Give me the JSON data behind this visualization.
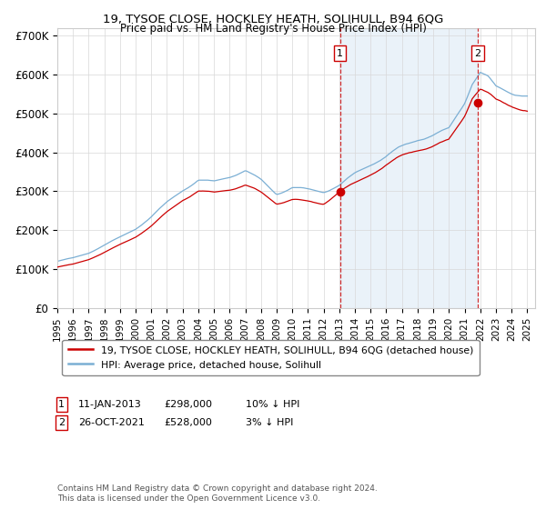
{
  "title": "19, TYSOE CLOSE, HOCKLEY HEATH, SOLIHULL, B94 6QG",
  "subtitle": "Price paid vs. HM Land Registry's House Price Index (HPI)",
  "ylabel_ticks": [
    "£0",
    "£100K",
    "£200K",
    "£300K",
    "£400K",
    "£500K",
    "£600K",
    "£700K"
  ],
  "ylim": [
    0,
    720000
  ],
  "xlim_start": 1995.0,
  "xlim_end": 2025.5,
  "hpi_color": "#7bafd4",
  "hpi_fill_color": "#dceaf5",
  "price_color": "#cc0000",
  "vline1_color": "#cc0000",
  "vline2_color": "#cc0000",
  "vline1_x": 2013.04,
  "vline2_x": 2021.83,
  "marker1_x": 2013.04,
  "marker1_y": 298000,
  "marker2_x": 2021.83,
  "marker2_y": 528000,
  "legend_line1": "19, TYSOE CLOSE, HOCKLEY HEATH, SOLIHULL, B94 6QG (detached house)",
  "legend_line2": "HPI: Average price, detached house, Solihull",
  "annotation1_num": "1",
  "annotation1_date": "11-JAN-2013",
  "annotation1_price": "£298,000",
  "annotation1_hpi": "10% ↓ HPI",
  "annotation2_num": "2",
  "annotation2_date": "26-OCT-2021",
  "annotation2_price": "£528,000",
  "annotation2_hpi": "3% ↓ HPI",
  "footnote": "Contains HM Land Registry data © Crown copyright and database right 2024.\nThis data is licensed under the Open Government Licence v3.0.",
  "background_color": "#ffffff",
  "grid_color": "#d8d8d8"
}
